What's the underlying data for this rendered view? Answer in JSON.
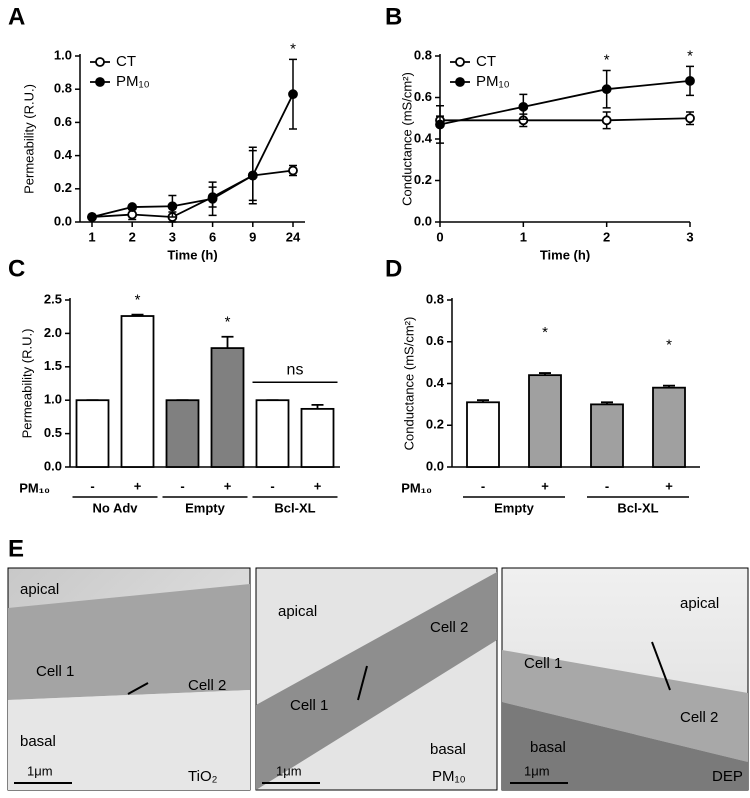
{
  "chart_data": [
    {
      "panel": "A",
      "type": "line",
      "categories": [
        "1",
        "2",
        "3",
        "6",
        "9",
        "24"
      ],
      "y_label": "Permeability (R.U.)",
      "x_label": "Time (h)",
      "ylim": [
        0,
        1
      ],
      "yticks": [
        {
          "value": 0,
          "label": "0.0"
        },
        0.2,
        0.4,
        0.6,
        0.8,
        {
          "value": 1,
          "label": "1.0"
        }
      ],
      "series": [
        {
          "name": "CT",
          "color": "#000000",
          "marker": "open",
          "values": [
            0.03,
            0.045,
            0.03,
            0.15,
            0.28,
            0.31
          ],
          "errors": [
            0.005,
            0.03,
            0.03,
            0.06,
            0.15,
            0.03
          ]
        },
        {
          "name": "PM₁₀",
          "color": "#000000",
          "marker": "filled",
          "values": [
            0.03,
            0.09,
            0.095,
            0.14,
            0.28,
            0.77
          ],
          "errors": [
            0.01,
            0.01,
            0.065,
            0.1,
            0.17,
            0.21
          ]
        }
      ],
      "annotations": [
        {
          "text": "*",
          "index": 5
        }
      ]
    },
    {
      "panel": "B",
      "type": "line",
      "x": [
        0,
        1,
        2,
        3
      ],
      "xlim": [
        0,
        3
      ],
      "xticks": [
        0,
        1,
        2,
        3
      ],
      "y_label": "Conductance (mS/cm²)",
      "x_label": "Time (h)",
      "ylim": [
        0,
        0.8
      ],
      "yticks": [
        {
          "value": 0,
          "label": "0.0"
        },
        0.2,
        0.4,
        0.6,
        0.8
      ],
      "series": [
        {
          "name": "CT",
          "color": "#000000",
          "marker": "open",
          "values": [
            0.49,
            0.49,
            0.49,
            0.5
          ],
          "errors": [
            0.02,
            0.03,
            0.04,
            0.03
          ]
        },
        {
          "name": "PM₁₀",
          "color": "#000000",
          "marker": "filled",
          "values": [
            0.47,
            0.555,
            0.64,
            0.68
          ],
          "errors": [
            0.09,
            0.06,
            0.09,
            0.07
          ]
        }
      ],
      "annotations": [
        {
          "text": "*",
          "index": 2
        },
        {
          "text": "*",
          "index": 3
        }
      ]
    },
    {
      "panel": "C",
      "type": "bar",
      "categories": [
        "-",
        "+",
        "-",
        "+",
        "-",
        "+"
      ],
      "groups": [
        "No Adv",
        "Empty",
        "Bcl-XL"
      ],
      "group_axis_label": "PM₁₀",
      "y_label": "Permeability (R.U.)",
      "ylim": [
        0,
        2.5
      ],
      "yticks": [
        {
          "value": 0,
          "label": "0.0"
        },
        0.5,
        {
          "value": 1,
          "label": "1.0"
        },
        1.5,
        {
          "value": 2,
          "label": "2.0"
        },
        2.5
      ],
      "values": [
        1.0,
        2.26,
        1.0,
        1.78,
        1.0,
        0.87
      ],
      "errors": [
        0,
        0.02,
        0,
        0.17,
        0,
        0.06
      ],
      "colors": [
        "#ffffff",
        "#ffffff",
        "#808080",
        "#808080",
        "#ffffff",
        "#ffffff"
      ],
      "annotations": [
        {
          "text": "*",
          "index": 1
        },
        {
          "text": "*",
          "index": 3
        },
        {
          "text": "ns",
          "index": [
            4,
            5
          ]
        }
      ]
    },
    {
      "panel": "D",
      "type": "bar",
      "categories": [
        "-",
        "+",
        "-",
        "+"
      ],
      "groups": [
        "Empty",
        "Bcl-XL"
      ],
      "group_axis_label": "PM₁₀",
      "y_label": "Conductance (mS/cm²)",
      "ylim": [
        0,
        0.8
      ],
      "yticks": [
        {
          "value": 0,
          "label": "0.0"
        },
        0.2,
        0.4,
        0.6,
        0.8
      ],
      "values": [
        0.31,
        0.44,
        0.3,
        0.38
      ],
      "errors": [
        0.01,
        0.01,
        0.01,
        0.01
      ],
      "colors": [
        "#ffffff",
        "#a0a0a0",
        "#a0a0a0",
        "#a0a0a0"
      ],
      "annotations": [
        {
          "text": "*",
          "index": 1
        },
        {
          "text": "*",
          "index": 3
        }
      ]
    }
  ],
  "panel_e": {
    "label": "E",
    "images": [
      {
        "apical": "apical",
        "basal": "basal",
        "cell_1": "Cell 1",
        "cell_2": "Cell 2",
        "scale": "1μm",
        "treatment": "TiO₂"
      },
      {
        "apical": "apical",
        "basal": "basal",
        "cell_1": "Cell 1",
        "cell_2": "Cell 2",
        "scale": "1μm",
        "treatment": "PM₁₀"
      },
      {
        "apical": "apical",
        "basal": "basal",
        "cell_1": "Cell 1",
        "cell_2": "Cell 2",
        "scale": "1μm",
        "treatment": "DEP"
      }
    ]
  }
}
